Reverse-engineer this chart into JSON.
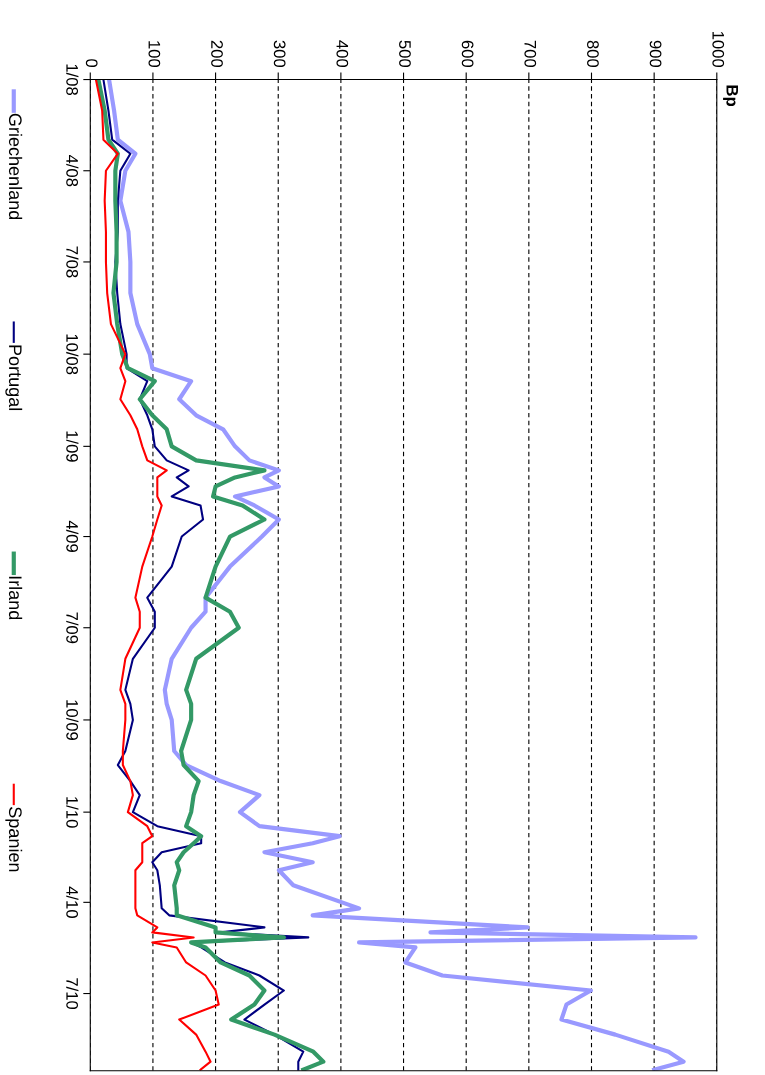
{
  "chart_data": {
    "type": "line",
    "orientation": "horizontal",
    "annotations": [
      "Bp"
    ],
    "xlim": [
      0,
      1000
    ],
    "xticks": [
      0,
      100,
      200,
      300,
      400,
      500,
      600,
      700,
      800,
      900,
      1000
    ],
    "ylim": [
      "2010-09-16",
      "2008-01-01"
    ],
    "yticks": [
      {
        "value": "2008-01-01",
        "label": "1/08"
      },
      {
        "value": "2008-04-01",
        "label": "4/08"
      },
      {
        "value": "2008-07-01",
        "label": "7/08"
      },
      {
        "value": "2008-10-01",
        "label": "10/08"
      },
      {
        "value": "2009-01-01",
        "label": "1/09"
      },
      {
        "value": "2009-04-01",
        "label": "4/09"
      },
      {
        "value": "2009-07-01",
        "label": "7/09"
      },
      {
        "value": "2009-10-01",
        "label": "10/09"
      },
      {
        "value": "2010-01-01",
        "label": "1/10"
      },
      {
        "value": "2010-04-01",
        "label": "4/10"
      },
      {
        "value": "2010-07-01",
        "label": "7/10"
      }
    ],
    "x": [
      "2008-01-01",
      "2008-02-01",
      "2008-03-01",
      "2008-03-15",
      "2008-04-01",
      "2008-05-01",
      "2008-06-01",
      "2008-07-01",
      "2008-08-01",
      "2008-09-01",
      "2008-10-01",
      "2008-10-15",
      "2008-10-28",
      "2008-11-15",
      "2008-12-01",
      "2008-12-15",
      "2009-01-01",
      "2009-01-15",
      "2009-01-25",
      "2009-02-01",
      "2009-02-10",
      "2009-02-20",
      "2009-03-01",
      "2009-03-15",
      "2009-04-01",
      "2009-05-01",
      "2009-06-01",
      "2009-06-15",
      "2009-07-01",
      "2009-08-01",
      "2009-09-01",
      "2009-09-15",
      "2009-10-01",
      "2009-11-01",
      "2009-11-15",
      "2009-12-01",
      "2009-12-15",
      "2010-01-01",
      "2010-01-15",
      "2010-01-25",
      "2010-02-01",
      "2010-02-10",
      "2010-02-20",
      "2010-02-28",
      "2010-03-15",
      "2010-04-07",
      "2010-04-14",
      "2010-04-26",
      "2010-05-01",
      "2010-05-06",
      "2010-05-11",
      "2010-05-16",
      "2010-05-31",
      "2010-06-13",
      "2010-06-28",
      "2010-07-12",
      "2010-07-27",
      "2010-08-11",
      "2010-08-28",
      "2010-09-07",
      "2010-09-15"
    ],
    "series": [
      {
        "name": "Griechenland",
        "color": "#9999ff",
        "values": [
          30,
          38,
          44,
          72,
          56,
          48,
          61,
          64,
          64,
          75,
          95,
          99,
          161,
          142,
          169,
          212,
          231,
          254,
          301,
          278,
          301,
          231,
          262,
          301,
          274,
          223,
          184,
          184,
          161,
          130,
          119,
          122,
          130,
          134,
          153,
          208,
          270,
          239,
          270,
          398,
          355,
          278,
          355,
          301,
          324,
          429,
          355,
          698,
          543,
          966,
          429,
          519,
          503,
          562,
          799,
          760,
          752,
          838,
          923,
          947,
          900
        ]
      },
      {
        "name": "Portugal",
        "color": "#000080",
        "values": [
          21,
          29,
          35,
          64,
          48,
          44,
          44,
          40,
          43,
          48,
          58,
          58,
          91,
          79,
          91,
          99,
          103,
          122,
          157,
          138,
          157,
          130,
          176,
          180,
          146,
          130,
          91,
          103,
          103,
          68,
          56,
          64,
          68,
          56,
          44,
          64,
          79,
          68,
          107,
          177,
          177,
          114,
          99,
          107,
          111,
          114,
          126,
          278,
          208,
          348,
          161,
          177,
          215,
          270,
          309,
          278,
          246,
          294,
          340,
          332,
          332
        ]
      },
      {
        "name": "Irland",
        "color": "#339966",
        "values": [
          13,
          23,
          29,
          44,
          40,
          40,
          42,
          42,
          37,
          43,
          51,
          60,
          103,
          79,
          99,
          122,
          130,
          169,
          278,
          231,
          200,
          196,
          243,
          278,
          223,
          200,
          184,
          223,
          237,
          169,
          153,
          161,
          161,
          145,
          149,
          173,
          165,
          161,
          153,
          177,
          165,
          149,
          138,
          142,
          134,
          138,
          138,
          200,
          200,
          309,
          161,
          184,
          208,
          254,
          278,
          262,
          225,
          294,
          356,
          372,
          340
        ]
      },
      {
        "name": "Spanien",
        "color": "#ff0000",
        "values": [
          9,
          19,
          21,
          44,
          25,
          23,
          25,
          25,
          27,
          33,
          56,
          48,
          56,
          48,
          64,
          75,
          83,
          91,
          122,
          107,
          107,
          107,
          114,
          107,
          99,
          83,
          72,
          79,
          79,
          56,
          48,
          56,
          56,
          52,
          52,
          64,
          68,
          60,
          91,
          99,
          83,
          83,
          83,
          72,
          72,
          72,
          75,
          107,
          99,
          165,
          99,
          138,
          153,
          184,
          200,
          205,
          142,
          169,
          184,
          192,
          176
        ]
      }
    ],
    "grid": "x",
    "legend": "left",
    "line_style": "solid",
    "marker": "none"
  }
}
